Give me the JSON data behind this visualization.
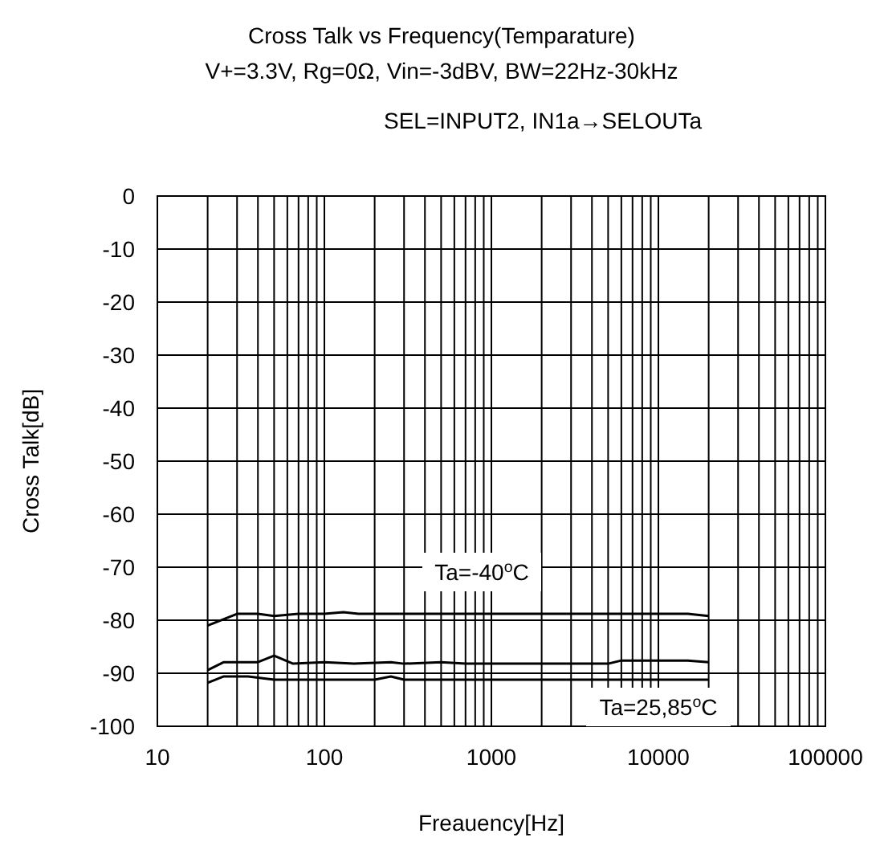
{
  "chart_data": {
    "type": "line",
    "title": "Cross Talk vs Frequency(Temparature)",
    "subtitle": "V+=3.3V, Rg=0Ω, Vin=-3dBV, BW=22Hz-30kHz",
    "xlabel": "Freauency[Hz]",
    "ylabel": "Cross Talk[dB]",
    "annotations": [
      "SEL=INPUT2, IN1a→SELOUTa",
      "Ta=-40$^{o}$C",
      "Ta=25,85$^{o}$C"
    ],
    "log": "x",
    "grid": true,
    "marker": "none",
    "line_style": "solid",
    "xlim": [
      10,
      100000
    ],
    "xticks": [
      10,
      100,
      1000,
      10000,
      100000
    ],
    "ylim": [
      -100,
      0
    ],
    "yticks": [
      0,
      -10,
      -20,
      -30,
      -40,
      -50,
      -60,
      -70,
      -80,
      -90,
      -100
    ],
    "series": [
      {
        "color": "#000000",
        "x": [
          20,
          30,
          40,
          50,
          70,
          100,
          130,
          160,
          200,
          500,
          1000,
          5000,
          10000,
          15000,
          20000
        ],
        "values": [
          -81,
          -78.8,
          -78.8,
          -79.2,
          -78.8,
          -78.8,
          -78.5,
          -78.8,
          -78.8,
          -78.8,
          -78.8,
          -78.8,
          -78.8,
          -78.8,
          -79.2
        ]
      },
      {
        "color": "#000000",
        "x": [
          20,
          25,
          30,
          40,
          50,
          65,
          100,
          150,
          250,
          300,
          500,
          700,
          5000,
          6000,
          15000,
          20000
        ],
        "values": [
          -89.4,
          -87.9,
          -87.9,
          -87.9,
          -86.7,
          -88.2,
          -87.9,
          -88.2,
          -87.9,
          -88.2,
          -87.9,
          -88.2,
          -88.2,
          -87.6,
          -87.6,
          -87.9
        ]
      },
      {
        "color": "#000000",
        "x": [
          20,
          25,
          35,
          50,
          200,
          250,
          300,
          1000,
          10000,
          20000
        ],
        "values": [
          -91.8,
          -90.6,
          -90.6,
          -91.2,
          -91.2,
          -90.6,
          -91.2,
          -91.2,
          -91.2,
          -91.2
        ]
      }
    ]
  }
}
